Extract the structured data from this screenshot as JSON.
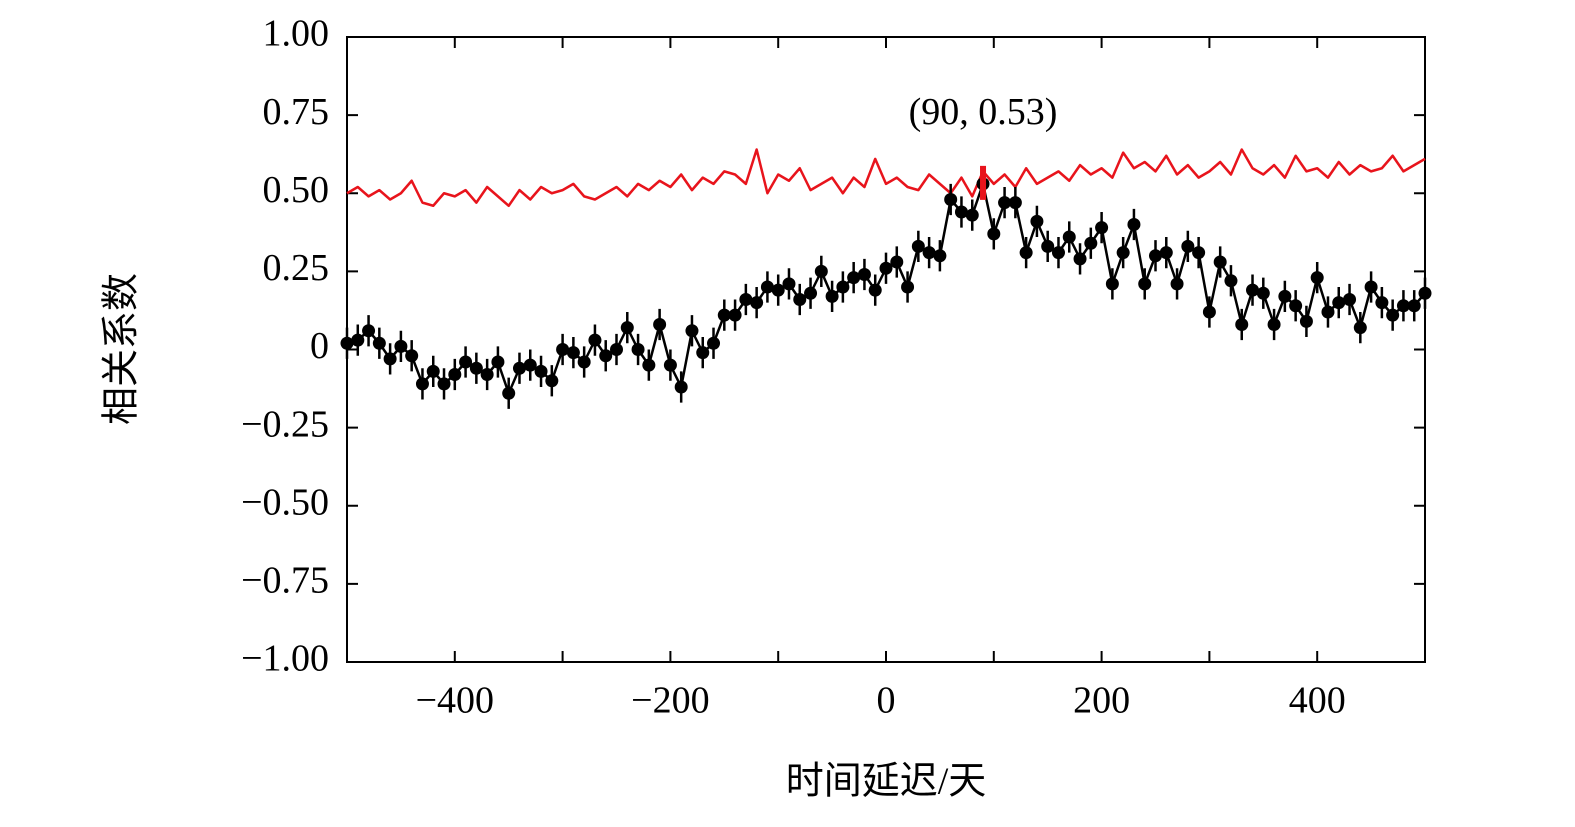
{
  "chart_data": {
    "type": "line",
    "xlabel": "时间延迟/天",
    "ylabel": "相关系数",
    "xlim": [
      -500,
      500
    ],
    "ylim": [
      -1,
      1
    ],
    "xticks": [
      {
        "value": -400,
        "label": "−400"
      },
      {
        "value": -200,
        "label": "−200"
      },
      0,
      200,
      400
    ],
    "xminor": [
      -300,
      -100,
      100,
      300
    ],
    "yticks": [
      {
        "value": -1,
        "label": "−1.00"
      },
      {
        "value": -0.75,
        "label": "−0.75"
      },
      {
        "value": -0.5,
        "label": "−0.50"
      },
      {
        "value": -0.25,
        "label": "−0.25"
      },
      0,
      {
        "value": 0.25,
        "label": "0.25"
      },
      {
        "value": 0.5,
        "label": "0.50"
      },
      {
        "value": 0.75,
        "label": "0.75"
      },
      {
        "value": 1,
        "label": "1.00"
      }
    ],
    "x": [
      -500,
      -490,
      -480,
      -470,
      -460,
      -450,
      -440,
      -430,
      -420,
      -410,
      -400,
      -390,
      -380,
      -370,
      -360,
      -350,
      -340,
      -330,
      -320,
      -310,
      -300,
      -290,
      -280,
      -270,
      -260,
      -250,
      -240,
      -230,
      -220,
      -210,
      -200,
      -190,
      -180,
      -170,
      -160,
      -150,
      -140,
      -130,
      -120,
      -110,
      -100,
      -90,
      -80,
      -70,
      -60,
      -50,
      -40,
      -30,
      -20,
      -10,
      0,
      10,
      20,
      30,
      40,
      50,
      60,
      70,
      80,
      90,
      100,
      110,
      120,
      130,
      140,
      150,
      160,
      170,
      180,
      190,
      200,
      210,
      220,
      230,
      240,
      250,
      260,
      270,
      280,
      290,
      300,
      310,
      320,
      330,
      340,
      350,
      360,
      370,
      380,
      390,
      400,
      410,
      420,
      430,
      440,
      450,
      460,
      470,
      480,
      490,
      500
    ],
    "series": [
      {
        "color": "#e8141c",
        "markers": false,
        "values": [
          0.5,
          0.52,
          0.49,
          0.51,
          0.48,
          0.5,
          0.54,
          0.47,
          0.46,
          0.5,
          0.49,
          0.51,
          0.47,
          0.52,
          0.49,
          0.46,
          0.51,
          0.48,
          0.52,
          0.5,
          0.51,
          0.53,
          0.49,
          0.48,
          0.5,
          0.52,
          0.49,
          0.53,
          0.51,
          0.54,
          0.52,
          0.56,
          0.51,
          0.55,
          0.53,
          0.57,
          0.56,
          0.53,
          0.64,
          0.5,
          0.56,
          0.54,
          0.58,
          0.51,
          0.53,
          0.55,
          0.5,
          0.55,
          0.52,
          0.61,
          0.53,
          0.55,
          0.52,
          0.51,
          0.56,
          0.53,
          0.5,
          0.55,
          0.49,
          0.57,
          0.53,
          0.56,
          0.52,
          0.58,
          0.53,
          0.55,
          0.57,
          0.54,
          0.59,
          0.56,
          0.58,
          0.55,
          0.63,
          0.58,
          0.6,
          0.57,
          0.62,
          0.56,
          0.59,
          0.55,
          0.57,
          0.6,
          0.56,
          0.64,
          0.58,
          0.56,
          0.59,
          0.55,
          0.62,
          0.57,
          0.58,
          0.55,
          0.6,
          0.56,
          0.59,
          0.57,
          0.58,
          0.62,
          0.57,
          0.59,
          0.61
        ]
      },
      {
        "color": "#000000",
        "markers": true,
        "error": 0.05,
        "values": [
          0.02,
          0.03,
          0.06,
          0.02,
          -0.03,
          0.01,
          -0.02,
          -0.11,
          -0.07,
          -0.11,
          -0.08,
          -0.04,
          -0.06,
          -0.08,
          -0.04,
          -0.14,
          -0.06,
          -0.05,
          -0.07,
          -0.1,
          0.0,
          -0.01,
          -0.04,
          0.03,
          -0.02,
          0.0,
          0.07,
          0.0,
          -0.05,
          0.08,
          -0.05,
          -0.12,
          0.06,
          -0.01,
          0.02,
          0.11,
          0.11,
          0.16,
          0.15,
          0.2,
          0.19,
          0.21,
          0.16,
          0.18,
          0.25,
          0.17,
          0.2,
          0.23,
          0.24,
          0.19,
          0.26,
          0.28,
          0.2,
          0.33,
          0.31,
          0.3,
          0.48,
          0.44,
          0.43,
          0.53,
          0.37,
          0.47,
          0.47,
          0.31,
          0.41,
          0.33,
          0.31,
          0.36,
          0.29,
          0.34,
          0.39,
          0.21,
          0.31,
          0.4,
          0.21,
          0.3,
          0.31,
          0.21,
          0.33,
          0.31,
          0.12,
          0.28,
          0.22,
          0.08,
          0.19,
          0.18,
          0.08,
          0.17,
          0.14,
          0.09,
          0.23,
          0.12,
          0.15,
          0.16,
          0.07,
          0.2,
          0.15,
          0.11,
          0.14,
          0.14,
          0.18
        ]
      }
    ],
    "annotation": {
      "text": "(90, 0.53)",
      "x": 90,
      "y": 0.53,
      "color": "#e8141c"
    }
  }
}
